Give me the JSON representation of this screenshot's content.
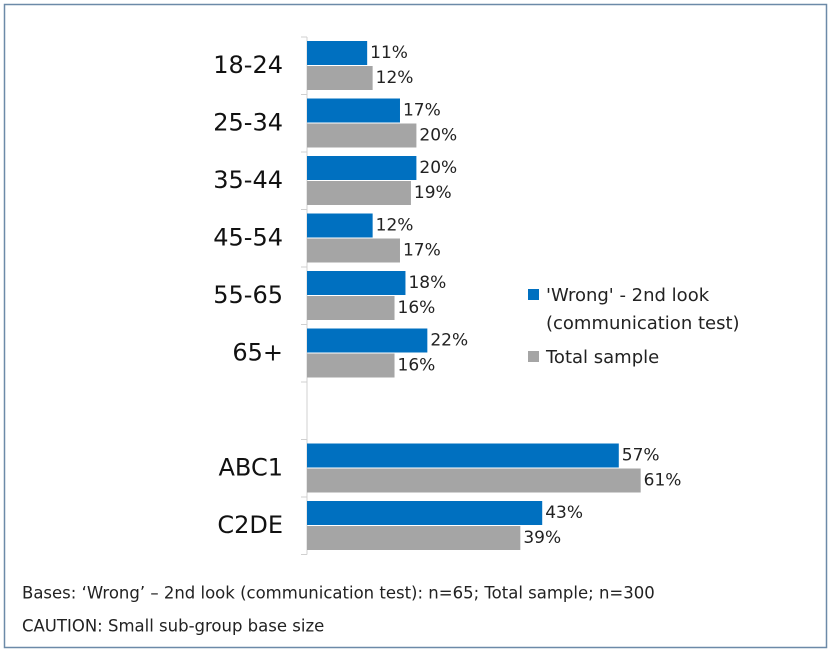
{
  "chart_data": {
    "type": "bar",
    "orientation": "horizontal",
    "categories": [
      "18-24",
      "25-34",
      "35-44",
      "45-54",
      "55-65",
      "65+",
      null,
      "ABC1",
      "C2DE"
    ],
    "series": [
      {
        "name": "'Wrong' - 2nd look (communication test)",
        "color": "#0070c0",
        "values": [
          11,
          17,
          20,
          12,
          18,
          22,
          null,
          57,
          43
        ],
        "value_labels": [
          "11%",
          "17%",
          "20%",
          "12%",
          "18%",
          "22%",
          null,
          "57%",
          "43%"
        ]
      },
      {
        "name": "Total sample",
        "color": "#a5a5a5",
        "values": [
          12,
          20,
          19,
          17,
          16,
          16,
          null,
          61,
          39
        ],
        "value_labels": [
          "12%",
          "20%",
          "19%",
          "17%",
          "16%",
          "16%",
          null,
          "61%",
          "39%"
        ]
      }
    ],
    "legend": "right",
    "notes": [
      "Bases: ‘Wrong’ – 2nd look (communication test): n=65; Total sample; n=300",
      "CAUTION: Small sub-group base size"
    ]
  }
}
